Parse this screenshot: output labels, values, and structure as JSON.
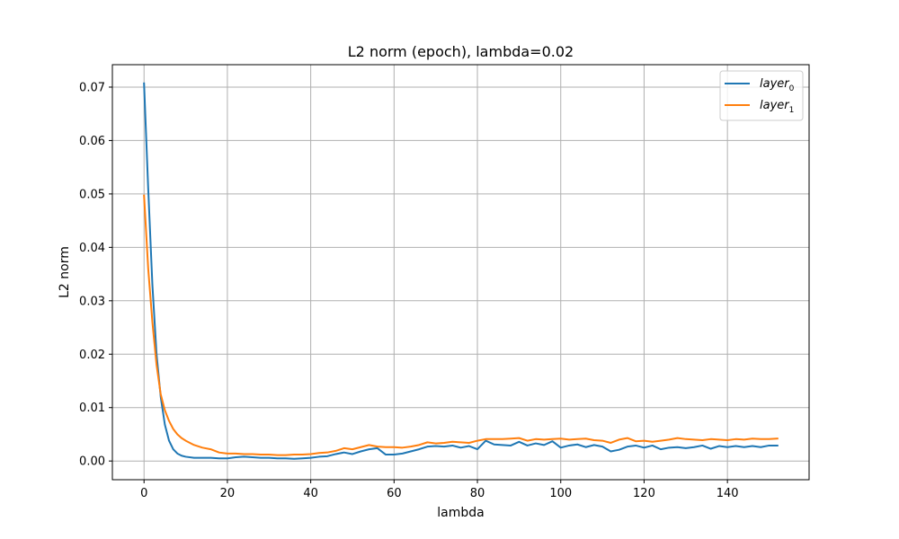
{
  "chart_data": {
    "type": "line",
    "title": "L2 norm (epoch), lambda=0.02",
    "xlabel": "lambda",
    "ylabel": "L2 norm",
    "xlim": [
      -7.6,
      159.6
    ],
    "ylim": [
      -0.0035,
      0.0742
    ],
    "xticks": [
      0,
      20,
      40,
      60,
      80,
      100,
      120,
      140
    ],
    "yticks": [
      0.0,
      0.01,
      0.02,
      0.03,
      0.04,
      0.05,
      0.06,
      0.07
    ],
    "xtick_labels": [
      "0",
      "20",
      "40",
      "60",
      "80",
      "100",
      "120",
      "140"
    ],
    "ytick_labels": [
      "0.00",
      "0.01",
      "0.02",
      "0.03",
      "0.04",
      "0.05",
      "0.06",
      "0.07"
    ],
    "grid": true,
    "legend_position": "top-right",
    "series": [
      {
        "name": "layer",
        "subscript": "0",
        "color": "#1f77b4",
        "x": [
          0,
          1,
          2,
          3,
          4,
          5,
          6,
          7,
          8,
          9,
          10,
          12,
          14,
          16,
          18,
          20,
          22,
          24,
          26,
          28,
          30,
          32,
          34,
          36,
          38,
          40,
          42,
          44,
          46,
          48,
          50,
          52,
          54,
          56,
          58,
          60,
          62,
          64,
          66,
          68,
          70,
          72,
          74,
          76,
          78,
          80,
          82,
          84,
          86,
          88,
          90,
          92,
          94,
          96,
          98,
          100,
          102,
          104,
          106,
          108,
          110,
          112,
          114,
          116,
          118,
          120,
          122,
          124,
          126,
          128,
          130,
          132,
          134,
          136,
          138,
          140,
          142,
          144,
          146,
          148,
          150,
          152
        ],
        "y": [
          0.0707,
          0.051,
          0.033,
          0.02,
          0.012,
          0.0068,
          0.0038,
          0.0022,
          0.0014,
          0.001,
          0.0008,
          0.0006,
          0.0006,
          0.0006,
          0.0005,
          0.0005,
          0.0007,
          0.0008,
          0.0007,
          0.0006,
          0.0006,
          0.0005,
          0.0005,
          0.0004,
          0.0005,
          0.0006,
          0.0008,
          0.0009,
          0.0013,
          0.0016,
          0.0013,
          0.0018,
          0.0022,
          0.0024,
          0.0012,
          0.0012,
          0.0014,
          0.0018,
          0.0022,
          0.0027,
          0.0028,
          0.0027,
          0.0029,
          0.0025,
          0.0028,
          0.0022,
          0.0038,
          0.0031,
          0.003,
          0.0029,
          0.0036,
          0.0029,
          0.0033,
          0.003,
          0.0037,
          0.0025,
          0.0029,
          0.0031,
          0.0026,
          0.003,
          0.0027,
          0.0018,
          0.0021,
          0.0027,
          0.0029,
          0.0025,
          0.0029,
          0.0022,
          0.0025,
          0.0026,
          0.0024,
          0.0026,
          0.0029,
          0.0023,
          0.0028,
          0.0026,
          0.0028,
          0.0026,
          0.0028,
          0.0026,
          0.0029,
          0.0029
        ]
      },
      {
        "name": "layer",
        "subscript": "1",
        "color": "#ff7f0e",
        "x": [
          0,
          1,
          2,
          3,
          4,
          5,
          6,
          7,
          8,
          9,
          10,
          12,
          14,
          16,
          18,
          20,
          22,
          24,
          26,
          28,
          30,
          32,
          34,
          36,
          38,
          40,
          42,
          44,
          46,
          48,
          50,
          52,
          54,
          56,
          58,
          60,
          62,
          64,
          66,
          68,
          70,
          72,
          74,
          76,
          78,
          80,
          82,
          84,
          86,
          88,
          90,
          92,
          94,
          96,
          98,
          100,
          102,
          104,
          106,
          108,
          110,
          112,
          114,
          116,
          118,
          120,
          122,
          124,
          126,
          128,
          130,
          132,
          134,
          136,
          138,
          140,
          142,
          144,
          146,
          148,
          150,
          152
        ],
        "y": [
          0.0497,
          0.036,
          0.026,
          0.018,
          0.0125,
          0.0095,
          0.0075,
          0.006,
          0.005,
          0.0043,
          0.0038,
          0.003,
          0.0025,
          0.0022,
          0.0016,
          0.0014,
          0.0014,
          0.0013,
          0.0013,
          0.0012,
          0.0012,
          0.0011,
          0.0011,
          0.0012,
          0.0012,
          0.0013,
          0.0015,
          0.0016,
          0.0019,
          0.0024,
          0.0022,
          0.0026,
          0.003,
          0.0027,
          0.0026,
          0.0026,
          0.0025,
          0.0027,
          0.003,
          0.0035,
          0.0033,
          0.0034,
          0.0036,
          0.0035,
          0.0034,
          0.0038,
          0.0041,
          0.0041,
          0.0041,
          0.0042,
          0.0043,
          0.0038,
          0.0041,
          0.004,
          0.0041,
          0.0042,
          0.004,
          0.0041,
          0.0042,
          0.0039,
          0.0038,
          0.0034,
          0.004,
          0.0043,
          0.0037,
          0.0038,
          0.0036,
          0.0038,
          0.004,
          0.0043,
          0.0041,
          0.004,
          0.0039,
          0.0041,
          0.004,
          0.0039,
          0.0041,
          0.004,
          0.0042,
          0.0041,
          0.0041,
          0.0042
        ]
      }
    ]
  }
}
